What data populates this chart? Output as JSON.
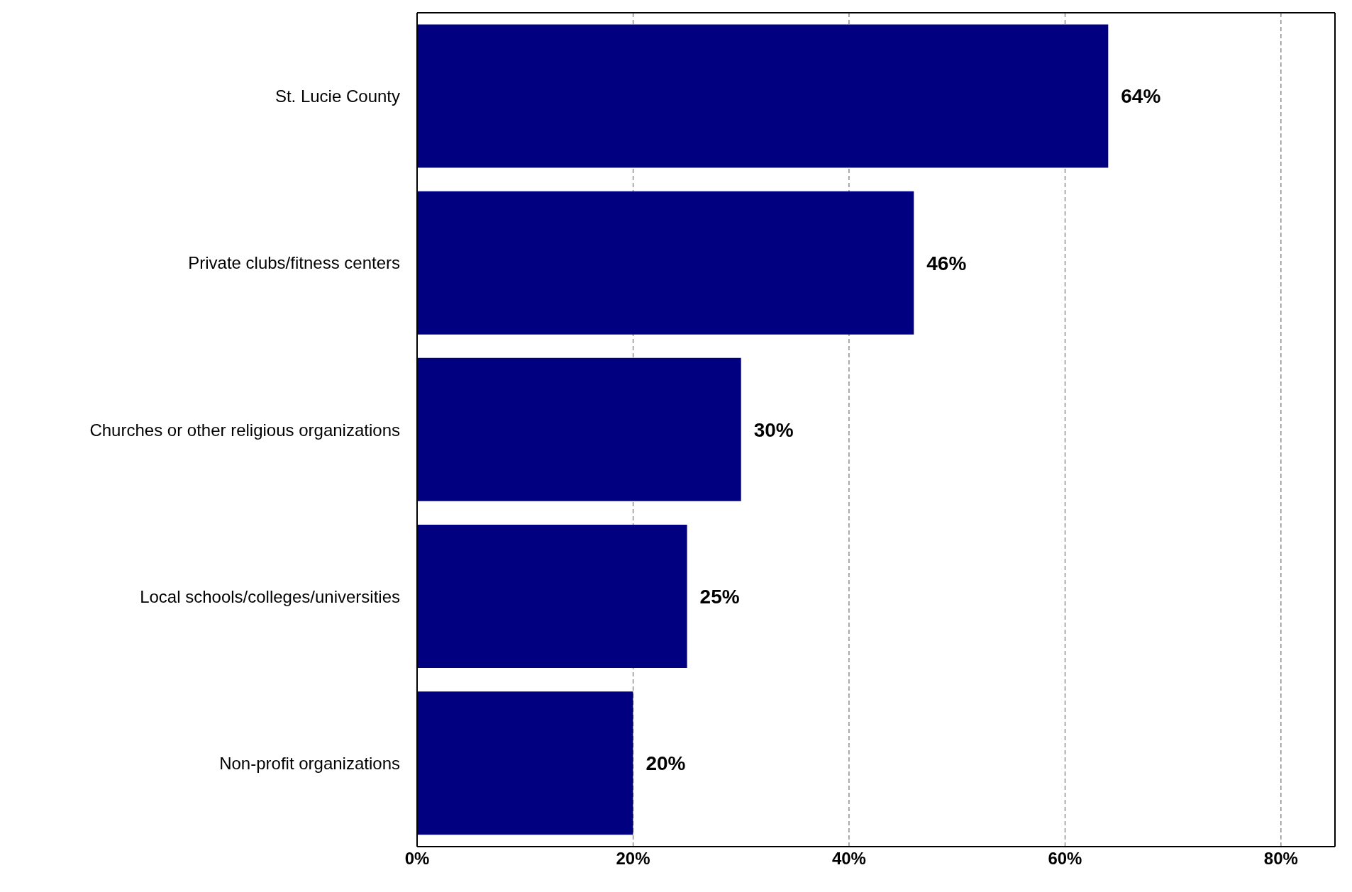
{
  "chart_data": {
    "type": "bar",
    "orientation": "horizontal",
    "categories": [
      "St. Lucie County",
      "Private clubs/fitness centers",
      "Churches or other religious organizations",
      "Local schools/colleges/universities",
      "Non-profit organizations"
    ],
    "values": [
      64,
      46,
      30,
      25,
      20
    ],
    "value_labels": [
      "64%",
      "46%",
      "30%",
      "25%",
      "20%"
    ],
    "color": "#000080",
    "xlim": [
      0,
      85
    ],
    "xticks": [
      {
        "value": 0,
        "label": "0%"
      },
      {
        "value": 20,
        "label": "20%"
      },
      {
        "value": 40,
        "label": "40%"
      },
      {
        "value": 60,
        "label": "60%"
      },
      {
        "value": 80,
        "label": "80%"
      }
    ],
    "grid": "x"
  }
}
